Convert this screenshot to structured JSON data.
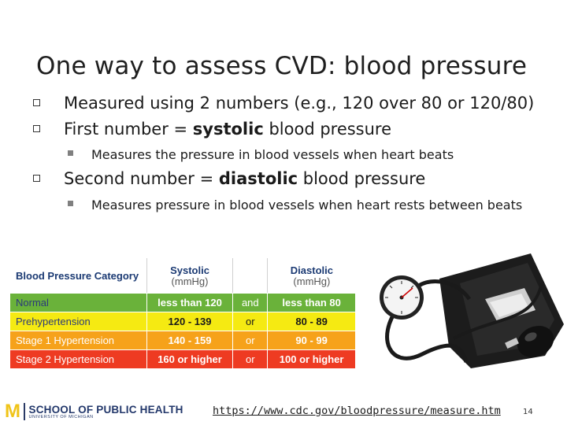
{
  "slide": {
    "title": "One way to assess CVD: blood pressure",
    "bullets": [
      {
        "text": "Measured using 2 numbers (e.g., 120 over 80 or 120/80)"
      },
      {
        "pre": "First number = ",
        "bold": "systolic",
        "post": " blood pressure"
      },
      {
        "pre": "Second number = ",
        "bold": "diastolic",
        "post": " blood pressure"
      }
    ],
    "sub_bullets": [
      "Measures the pressure in blood vessels when heart beats",
      "Measures pressure in blood vessels when heart rests between beats"
    ]
  },
  "bp_table": {
    "headers": {
      "category": "Blood Pressure Category",
      "systolic": "Systolic",
      "systolic_unit": "(mmHg)",
      "diastolic": "Diastolic",
      "diastolic_unit": "(mmHg)"
    },
    "rows": [
      {
        "category": "Normal",
        "systolic": "less than 120",
        "conj": "and",
        "diastolic": "less than 80",
        "color": "#6ab23a"
      },
      {
        "category": "Prehypertension",
        "systolic": "120 - 139",
        "conj": "or",
        "diastolic": "80 - 89",
        "color": "#f5ea12"
      },
      {
        "category": "Stage 1 Hypertension",
        "systolic": "140 - 159",
        "conj": "or",
        "diastolic": "90 - 99",
        "color": "#f6a21a"
      },
      {
        "category": "Stage 2 Hypertension",
        "systolic": "160 or higher",
        "conj": "or",
        "diastolic": "100 or higher",
        "color": "#ee3b22"
      }
    ]
  },
  "footer": {
    "logo_m": "M",
    "logo_school": "SCHOOL OF PUBLIC HEALTH",
    "logo_univ": "UNIVERSITY OF MICHIGAN",
    "link": "https://www.cdc.gov/bloodpressure/measure.htm",
    "page_number": "14"
  },
  "images": {
    "cuff_icon": "blood-pressure-cuff-icon"
  }
}
